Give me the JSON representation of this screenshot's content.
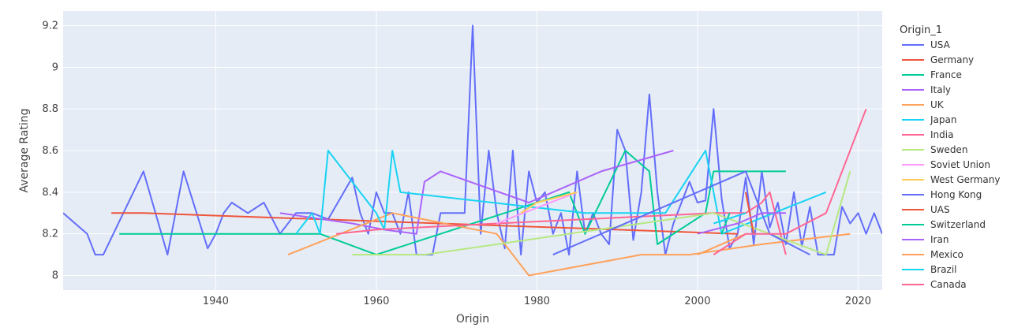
{
  "chart_data": {
    "type": "line",
    "xlabel": "Origin",
    "ylabel": "Average Rating",
    "legend_title": "Origin_1",
    "legend_position": "right",
    "grid": true,
    "xlim": [
      1921,
      2023
    ],
    "ylim": [
      7.93,
      9.27
    ],
    "xticks": [
      1940,
      1960,
      1980,
      2000,
      2020
    ],
    "yticks": [
      8,
      8.2,
      8.4,
      8.6,
      8.8,
      9,
      9.2
    ],
    "colors": {
      "background": "#e5ecf6",
      "grid": "#ffffff"
    },
    "series": [
      {
        "name": "USA",
        "color": "#636efa",
        "x": [
          1921,
          1924,
          1925,
          1926,
          1931,
          1934,
          1936,
          1939,
          1940,
          1941,
          1942,
          1944,
          1946,
          1948,
          1950,
          1952,
          1954,
          1957,
          1958,
          1959,
          1960,
          1961,
          1962,
          1963,
          1964,
          1965,
          1966,
          1967,
          1968,
          1969,
          1970,
          1971,
          1972,
          1973,
          1974,
          1975,
          1976,
          1977,
          1978,
          1979,
          1980,
          1981,
          1982,
          1983,
          1984,
          1985,
          1986,
          1987,
          1988,
          1989,
          1990,
          1991,
          1992,
          1993,
          1994,
          1995,
          1996,
          1997,
          1998,
          1999,
          2000,
          2001,
          2002,
          2003,
          2004,
          2005,
          2006,
          2007,
          2008,
          2009,
          2010,
          2011,
          2012,
          2013,
          2014,
          2015,
          2016,
          2017,
          2018,
          2019,
          2020,
          2021,
          2022,
          2023
        ],
        "y": [
          8.3,
          8.2,
          8.1,
          8.1,
          8.5,
          8.1,
          8.5,
          8.13,
          8.2,
          8.3,
          8.35,
          8.3,
          8.35,
          8.2,
          8.3,
          8.3,
          8.27,
          8.47,
          8.3,
          8.2,
          8.4,
          8.3,
          8.3,
          8.2,
          8.4,
          8.1,
          8.1,
          8.1,
          8.3,
          8.3,
          8.3,
          8.3,
          9.2,
          8.2,
          8.6,
          8.3,
          8.13,
          8.6,
          8.1,
          8.5,
          8.35,
          8.4,
          8.2,
          8.3,
          8.1,
          8.5,
          8.2,
          8.3,
          8.2,
          8.15,
          8.7,
          8.6,
          8.17,
          8.4,
          8.87,
          8.4,
          8.1,
          8.25,
          8.35,
          8.45,
          8.35,
          8.36,
          8.8,
          8.37,
          8.13,
          8.2,
          8.47,
          8.15,
          8.5,
          8.23,
          8.35,
          8.15,
          8.4,
          8.14,
          8.33,
          8.1,
          8.1,
          8.1,
          8.33,
          8.25,
          8.3,
          8.2,
          8.3,
          8.2
        ]
      },
      {
        "name": "Germany",
        "color": "#ef553b",
        "x": [
          1927,
          1931,
          2005
        ],
        "y": [
          8.3,
          8.3,
          8.2
        ]
      },
      {
        "name": "France",
        "color": "#00cc96",
        "x": [
          1928,
          1953,
          1960,
          1984,
          1986,
          1991,
          1994,
          1995,
          2001,
          2002,
          2011
        ],
        "y": [
          8.2,
          8.2,
          8.1,
          8.4,
          8.2,
          8.6,
          8.5,
          8.15,
          8.3,
          8.5,
          8.5
        ]
      },
      {
        "name": "Italy",
        "color": "#ab63fa",
        "x": [
          1948,
          1957,
          1961,
          1965,
          1966,
          1968,
          1979,
          1988,
          1997
        ],
        "y": [
          8.3,
          8.25,
          8.22,
          8.2,
          8.45,
          8.5,
          8.35,
          8.5,
          8.6
        ]
      },
      {
        "name": "UK",
        "color": "#ffa15a",
        "x": [
          1949,
          1962,
          1975,
          1979,
          1993,
          1999,
          2008,
          2019
        ],
        "y": [
          8.1,
          8.3,
          8.2,
          8.0,
          8.1,
          8.1,
          8.15,
          8.2
        ]
      },
      {
        "name": "Japan",
        "color": "#19d3f3",
        "x": [
          1950,
          1952,
          1953,
          1954,
          1960,
          1961,
          1962,
          1963,
          1986,
          1996,
          2001,
          2003,
          2016
        ],
        "y": [
          8.2,
          8.3,
          8.2,
          8.6,
          8.3,
          8.22,
          8.6,
          8.4,
          8.3,
          8.3,
          8.6,
          8.2,
          8.4
        ]
      },
      {
        "name": "India",
        "color": "#ff6692",
        "x": [
          1955,
          1960,
          1975,
          2002,
          2006,
          2008,
          2009,
          2011
        ],
        "y": [
          8.2,
          8.22,
          8.25,
          8.3,
          8.3,
          8.35,
          8.4,
          8.1
        ]
      },
      {
        "name": "Sweden",
        "color": "#b6e880",
        "x": [
          1957,
          1966,
          2002,
          2016,
          2019
        ],
        "y": [
          8.1,
          8.1,
          8.3,
          8.1,
          8.5
        ]
      },
      {
        "name": "Soviet Union",
        "color": "#ff97ff",
        "x": [
          1975,
          1985
        ],
        "y": [
          8.25,
          8.4
        ]
      },
      {
        "name": "West Germany",
        "color": "#fecb52",
        "x": [
          1978,
          1980,
          1985
        ],
        "y": [
          8.3,
          8.35,
          8.4
        ]
      },
      {
        "name": "Hong Kong",
        "color": "#636efa",
        "x": [
          1982,
          2006,
          2009,
          2014
        ],
        "y": [
          8.1,
          8.5,
          8.2,
          8.1
        ]
      },
      {
        "name": "UAS",
        "color": "#ef553b",
        "x": [
          2006,
          2007
        ],
        "y": [
          8.4,
          8.2
        ]
      },
      {
        "name": "Switzerland",
        "color": "#00cc96",
        "x": [
          2003,
          2004
        ],
        "y": [
          8.2,
          8.3
        ]
      },
      {
        "name": "Iran",
        "color": "#ab63fa",
        "x": [
          2000,
          2005,
          2008,
          2011
        ],
        "y": [
          8.2,
          8.25,
          8.3,
          8.3
        ]
      },
      {
        "name": "Mexico",
        "color": "#ffa15a",
        "x": [
          2000,
          2006
        ],
        "y": [
          8.1,
          8.2
        ]
      },
      {
        "name": "Brazil",
        "color": "#19d3f3",
        "x": [
          2002,
          2006
        ],
        "y": [
          8.25,
          8.3
        ]
      },
      {
        "name": "Canada",
        "color": "#ff6692",
        "x": [
          2002,
          2006,
          2011,
          2016,
          2021
        ],
        "y": [
          8.1,
          8.2,
          8.2,
          8.3,
          8.8
        ]
      }
    ]
  }
}
